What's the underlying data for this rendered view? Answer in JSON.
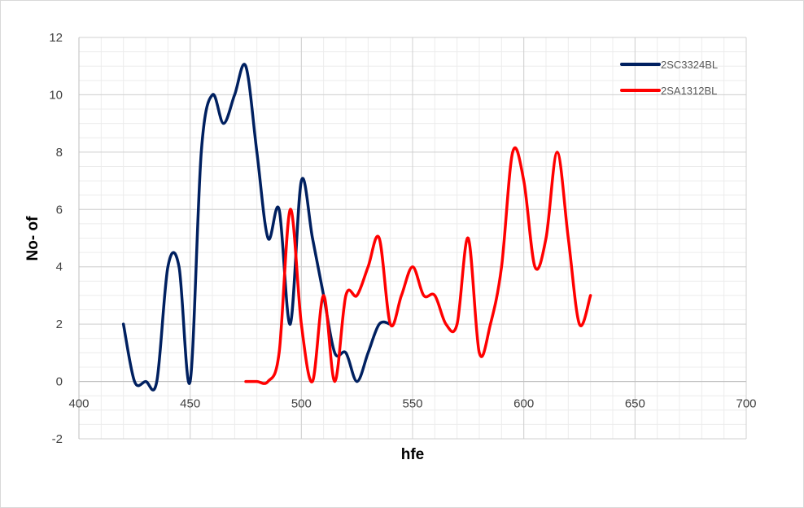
{
  "chart_data": {
    "type": "line",
    "title": "",
    "xlabel": "hfe",
    "ylabel": "No- of",
    "xlim": [
      400,
      700
    ],
    "ylim": [
      -2,
      12
    ],
    "xticks": [
      "400",
      "450",
      "500",
      "550",
      "600",
      "650",
      "700"
    ],
    "yticks": [
      "-2",
      "0",
      "2",
      "4",
      "6",
      "8",
      "10",
      "12"
    ],
    "grid": true,
    "smooth": true,
    "legend_position": "top-right",
    "series": [
      {
        "name": "2SC3324BL",
        "color": "#002060",
        "x": [
          420,
          425,
          430,
          435,
          440,
          445,
          450,
          455,
          460,
          465,
          470,
          475,
          480,
          485,
          490,
          495,
          500,
          505,
          510,
          515,
          520,
          525,
          530,
          535,
          540
        ],
        "y": [
          2,
          0,
          0,
          0,
          4,
          4,
          0,
          8,
          10,
          9,
          10,
          11,
          8,
          5,
          6,
          2,
          7,
          5,
          3,
          1,
          1,
          0,
          1,
          2,
          2
        ]
      },
      {
        "name": "2SA1312BL",
        "color": "#ff0000",
        "x": [
          475,
          480,
          485,
          490,
          495,
          500,
          505,
          510,
          515,
          520,
          525,
          530,
          535,
          540,
          545,
          550,
          555,
          560,
          565,
          570,
          575,
          580,
          585,
          590,
          595,
          600,
          605,
          610,
          615,
          620,
          625,
          630
        ],
        "y": [
          0,
          0,
          0,
          1,
          6,
          2,
          0,
          3,
          0,
          3,
          3,
          4,
          5,
          2,
          3,
          4,
          3,
          3,
          2,
          2,
          5,
          1,
          2,
          4,
          8,
          7,
          4,
          5,
          8,
          5,
          2,
          3
        ]
      }
    ]
  }
}
